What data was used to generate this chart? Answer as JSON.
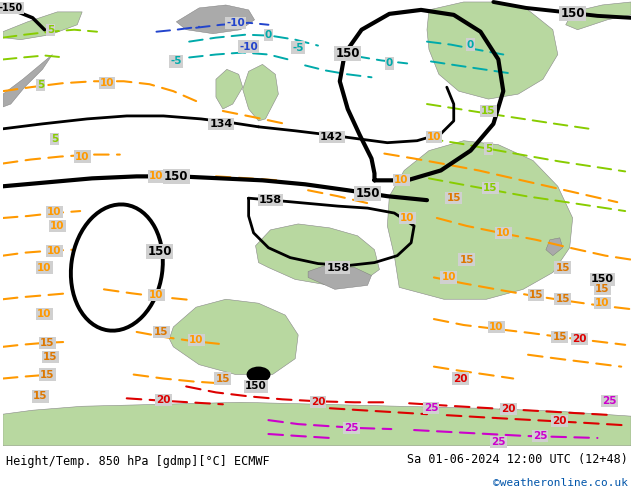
{
  "title_left": "Height/Temp. 850 hPa [gdmp][°C] ECMWF",
  "title_right": "Sa 01-06-2024 12:00 UTC (12+48)",
  "credit": "©weatheronline.co.uk",
  "bg_map_color": "#d0d0d0",
  "land_green": "#b8d8a0",
  "gray_terrain": "#aaaaaa",
  "black": "#000000",
  "orange": "#ff9900",
  "dark_orange": "#dd7700",
  "red": "#dd0000",
  "magenta": "#cc00cc",
  "green_lime": "#88cc00",
  "cyan": "#00aaaa",
  "blue": "#2244cc",
  "fig_width": 6.34,
  "fig_height": 4.9,
  "dpi": 100
}
